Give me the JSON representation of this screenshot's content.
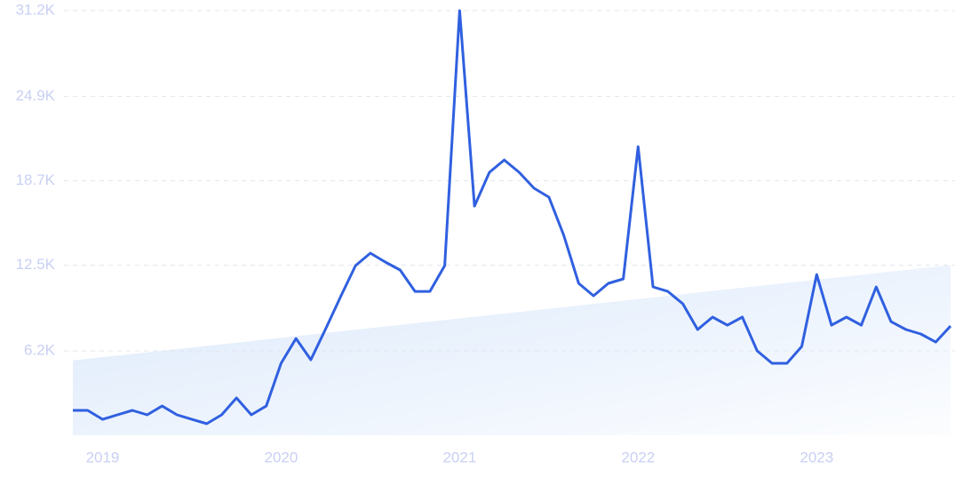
{
  "chart_data": {
    "type": "line",
    "categories": [
      null,
      null,
      "2019",
      null,
      null,
      null,
      null,
      null,
      null,
      null,
      null,
      null,
      null,
      null,
      "2020",
      null,
      null,
      null,
      null,
      null,
      null,
      null,
      null,
      null,
      null,
      null,
      "2021",
      null,
      null,
      null,
      null,
      null,
      null,
      null,
      null,
      null,
      null,
      null,
      "2022",
      null,
      null,
      null,
      null,
      null,
      null,
      null,
      null,
      null,
      null,
      null,
      "2023",
      null,
      null,
      null,
      null,
      null,
      null,
      null,
      null,
      null
    ],
    "series": [
      {
        "color": "#3060e0",
        "values": [
          1830,
          1830,
          1170,
          1500,
          1830,
          1500,
          2150,
          1500,
          1170,
          850,
          1500,
          2740,
          1500,
          2150,
          5290,
          7110,
          5550,
          7830,
          10180,
          12470,
          13380,
          12730,
          12140,
          10570,
          10570,
          12470,
          31200,
          16840,
          19320,
          20230,
          19320,
          18150,
          17490,
          14690,
          11160,
          10250,
          11160,
          11490,
          21210,
          10900,
          10570,
          9660,
          7770,
          8680,
          8090,
          8680,
          6200,
          5290,
          5290,
          6530,
          11810,
          8090,
          8680,
          8090,
          10900,
          8350,
          7770,
          7440,
          6850,
          8030
        ]
      }
    ],
    "trend": {
      "color": "#dce9fb",
      "values": [
        5500,
        12500
      ]
    },
    "ylim": [
      0,
      31200
    ],
    "yticks": [
      {
        "value": 6200,
        "label": "6.2K"
      },
      {
        "value": 12500,
        "label": "12.5K"
      },
      {
        "value": 18700,
        "label": "18.7K"
      },
      {
        "value": 24900,
        "label": "24.9K"
      },
      {
        "value": 31200,
        "label": "31.2K"
      }
    ],
    "grid": true
  }
}
